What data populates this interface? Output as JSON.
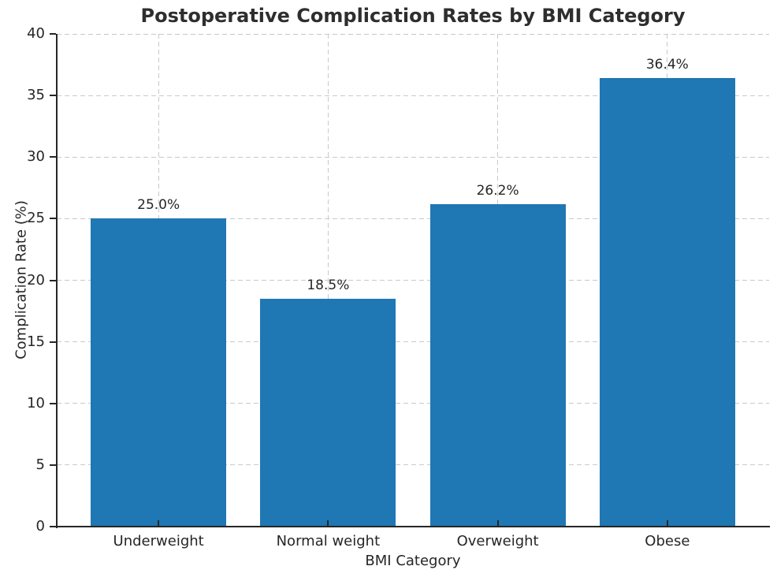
{
  "chart_data": {
    "type": "bar",
    "title": "Postoperative Complication Rates by BMI Category",
    "xlabel": "BMI Category",
    "ylabel": "Complication Rate (%)",
    "categories": [
      "Underweight",
      "Normal weight",
      "Overweight",
      "Obese"
    ],
    "values": [
      25.0,
      18.5,
      26.2,
      36.4
    ],
    "bar_labels": [
      "25.0%",
      "18.5%",
      "26.2%",
      "36.4%"
    ],
    "ylim": [
      0,
      40
    ],
    "yticks": [
      0,
      5,
      10,
      15,
      20,
      25,
      30,
      35,
      40
    ],
    "bar_color": "#1f77b4",
    "grid_color": "#c9c9c9",
    "axis_color": "#262626",
    "text_color": "#262626",
    "grid": "dashed, both axes, drawn behind bars",
    "legend": "none"
  }
}
